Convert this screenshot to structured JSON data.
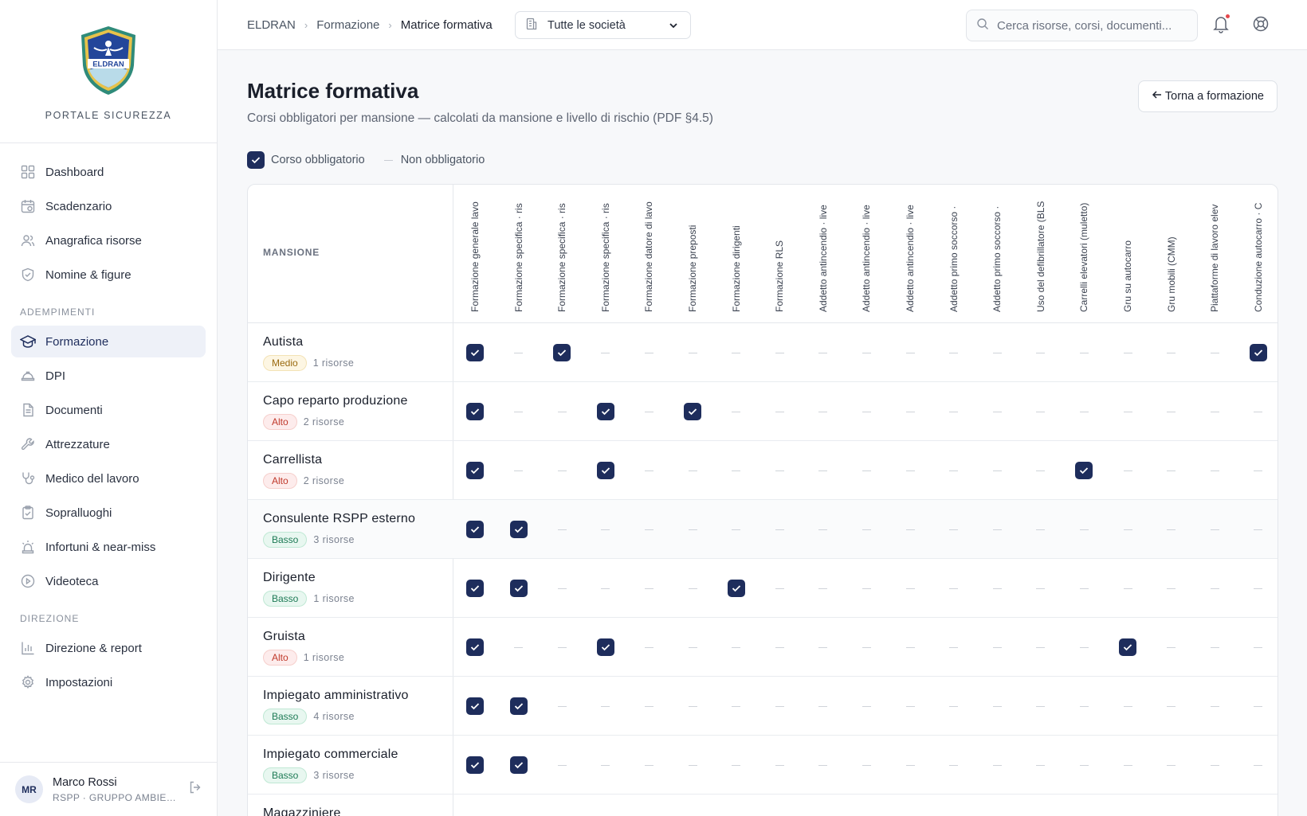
{
  "brand": {
    "name": "PORTALE SICUREZZA",
    "logo_text": "ELDRAN"
  },
  "nav": [
    {
      "label": "Dashboard",
      "icon": "dashboard-icon",
      "active": false
    },
    {
      "label": "Scadenzario",
      "icon": "calendar-icon",
      "active": false
    },
    {
      "label": "Anagrafica risorse",
      "icon": "users-icon",
      "active": false
    },
    {
      "label": "Nomine & figure",
      "icon": "shield-icon",
      "active": false
    }
  ],
  "section_adempimenti": "ADEMPIMENTI",
  "nav_adempimenti": [
    {
      "label": "Formazione",
      "icon": "graduation-cap-icon",
      "active": true
    },
    {
      "label": "DPI",
      "icon": "helmet-icon",
      "active": false
    },
    {
      "label": "Documenti",
      "icon": "document-icon",
      "active": false
    },
    {
      "label": "Attrezzature",
      "icon": "wrench-icon",
      "active": false
    },
    {
      "label": "Medico del lavoro",
      "icon": "stethoscope-icon",
      "active": false
    },
    {
      "label": "Sopralluoghi",
      "icon": "clipboard-icon",
      "active": false
    },
    {
      "label": "Infortuni & near-miss",
      "icon": "siren-icon",
      "active": false
    },
    {
      "label": "Videoteca",
      "icon": "play-icon",
      "active": false
    }
  ],
  "section_direzione": "DIREZIONE",
  "nav_direzione": [
    {
      "label": "Direzione & report",
      "icon": "bar-chart-icon",
      "active": false
    },
    {
      "label": "Impostazioni",
      "icon": "gear-icon",
      "active": false
    }
  ],
  "user": {
    "initials": "MR",
    "name": "Marco Rossi",
    "role": "RSPP · GRUPPO AMBIENTE"
  },
  "breadcrumb": [
    "ELDRAN",
    "Formazione",
    "Matrice formativa"
  ],
  "company_select": {
    "value": "Tutte le società"
  },
  "search": {
    "placeholder": "Cerca risorse, corsi, documenti..."
  },
  "page": {
    "title": "Matrice formativa",
    "subtitle": "Corsi obbligatori per mansione — calcolati da mansione e livello di rischio (PDF §4.5)",
    "back_label": "Torna a formazione"
  },
  "legend": {
    "required": "Corso obbligatorio",
    "not_required": "Non obbligatorio"
  },
  "matrix": {
    "header_label": "MANSIONE",
    "courses": [
      "Formazione generale lavo",
      "Formazione specifica · ris",
      "Formazione specifica · ris",
      "Formazione specifica · ris",
      "Formazione datore di lavo",
      "Formazione preposti",
      "Formazione dirigenti",
      "Formazione RLS",
      "Addetto antincendio · live",
      "Addetto antincendio · live",
      "Addetto antincendio · live",
      "Addetto primo soccorso ·",
      "Addetto primo soccorso ·",
      "Uso del defibrillatore (BLS",
      "Carrelli elevatori (muletto)",
      "Gru su autocarro",
      "Gru mobili (CMM)",
      "Piattaforme di lavoro elev",
      "Conduzione autocarro · C"
    ],
    "rows": [
      {
        "name": "Autista",
        "risk": "Medio",
        "risk_level": "medio",
        "count": "1 risorse",
        "required": [
          0,
          2,
          18
        ]
      },
      {
        "name": "Capo reparto produzione",
        "risk": "Alto",
        "risk_level": "alto",
        "count": "2 risorse",
        "required": [
          0,
          3,
          5
        ]
      },
      {
        "name": "Carrellista",
        "risk": "Alto",
        "risk_level": "alto",
        "count": "2 risorse",
        "required": [
          0,
          3,
          14
        ]
      },
      {
        "name": "Consulente RSPP esterno",
        "risk": "Basso",
        "risk_level": "basso",
        "count": "3 risorse",
        "required": [
          0,
          1
        ]
      },
      {
        "name": "Dirigente",
        "risk": "Basso",
        "risk_level": "basso",
        "count": "1 risorse",
        "required": [
          0,
          1,
          6
        ]
      },
      {
        "name": "Gruista",
        "risk": "Alto",
        "risk_level": "alto",
        "count": "1 risorse",
        "required": [
          0,
          3,
          15
        ]
      },
      {
        "name": "Impiegato amministrativo",
        "risk": "Basso",
        "risk_level": "basso",
        "count": "4 risorse",
        "required": [
          0,
          1
        ]
      },
      {
        "name": "Impiegato commerciale",
        "risk": "Basso",
        "risk_level": "basso",
        "count": "3 risorse",
        "required": [
          0,
          1
        ]
      },
      {
        "name": "Magazziniere",
        "risk": "",
        "risk_level": "",
        "count": "",
        "required": []
      }
    ]
  },
  "colors": {
    "accent": "#1e2d5c",
    "alert": "#e5484d"
  }
}
